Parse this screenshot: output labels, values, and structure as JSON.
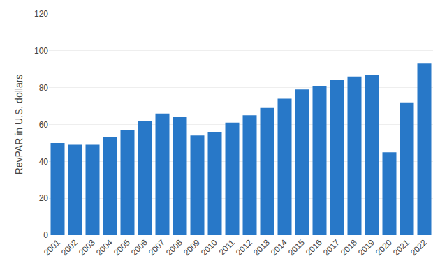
{
  "chart_data": {
    "type": "bar",
    "categories": [
      "2001",
      "2002",
      "2003",
      "2004",
      "2005",
      "2006",
      "2007",
      "2008",
      "2009",
      "2010",
      "2011",
      "2012",
      "2013",
      "2014",
      "2015",
      "2016",
      "2017",
      "2018",
      "2019",
      "2020",
      "2021",
      "2022"
    ],
    "values": [
      50,
      49,
      49,
      53,
      57,
      62,
      66,
      64,
      54,
      56,
      61,
      65,
      69,
      74,
      79,
      81,
      84,
      86,
      87,
      45,
      72,
      93
    ],
    "color": "#2878c8",
    "ylabel": "RevPAR in U.S. dollars",
    "ylim": [
      0,
      120
    ],
    "yticks": [
      0,
      20,
      40,
      60,
      80,
      100,
      120
    ],
    "grid": true
  }
}
